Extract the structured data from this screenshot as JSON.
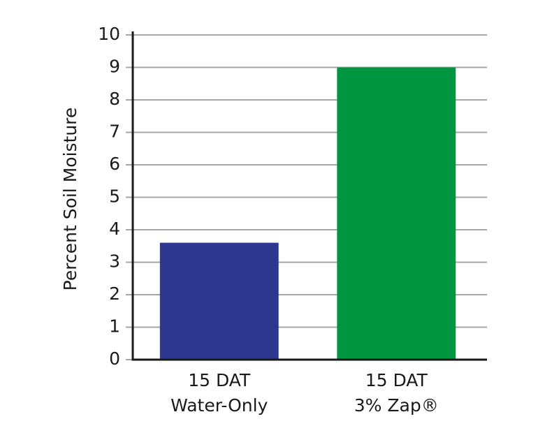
{
  "chart_data": {
    "type": "bar",
    "y_label": "Percent Soil Moisture",
    "categories": [
      "15 DAT\nWater-Only",
      "15 DAT\n3% Zap®"
    ],
    "values": [
      3.6,
      9
    ],
    "colors": [
      "#2e3790",
      "#009640"
    ],
    "ylim": [
      0,
      10
    ],
    "yticks": [
      0,
      1,
      2,
      3,
      4,
      5,
      6,
      7,
      8,
      9,
      10
    ],
    "grid": true
  }
}
